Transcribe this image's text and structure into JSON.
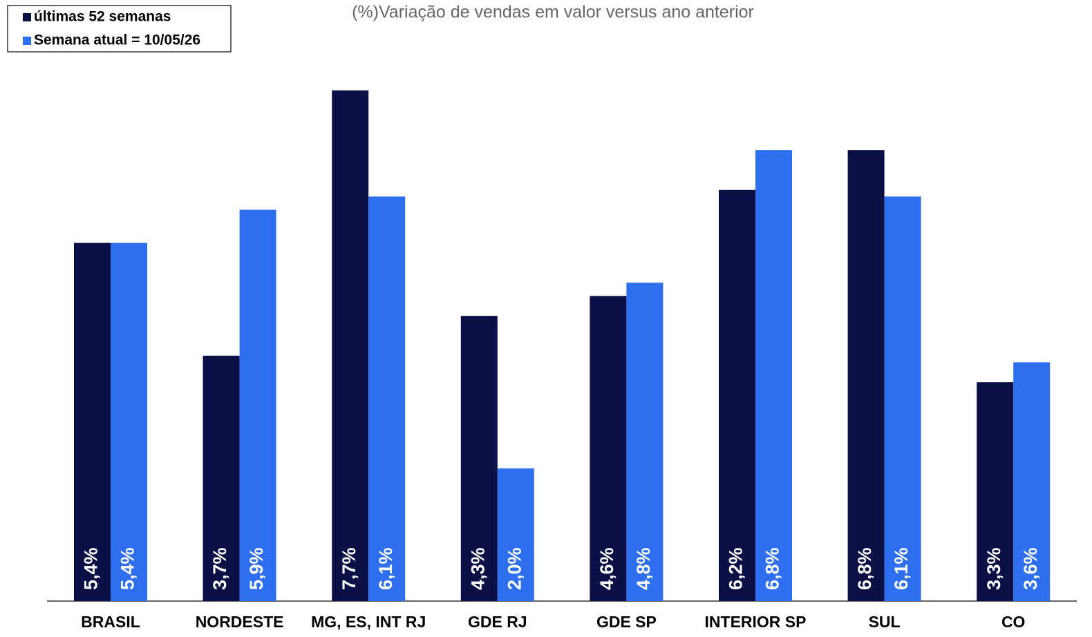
{
  "chart_data": {
    "type": "bar",
    "title": "(%)Variação de vendas em valor versus ano anterior",
    "categories": [
      "BRASIL",
      "NORDESTE",
      "MG, ES, INT RJ",
      "GDE RJ",
      "GDE SP",
      "INTERIOR SP",
      "SUL",
      "CO"
    ],
    "series": [
      {
        "name": "últimas 52 semanas",
        "color": "#0a0f45",
        "values": [
          5.4,
          3.7,
          7.7,
          4.3,
          4.6,
          6.2,
          6.8,
          3.3
        ],
        "value_labels": [
          "5,4%",
          "3,7%",
          "7,7%",
          "4,3%",
          "4,6%",
          "6,2%",
          "6,8%",
          "3,3%"
        ]
      },
      {
        "name": "Semana atual = 10/05/26",
        "color": "#2e6ff0",
        "values": [
          5.4,
          5.9,
          6.1,
          2.0,
          4.8,
          6.8,
          6.1,
          3.6
        ],
        "value_labels": [
          "5,4%",
          "5,9%",
          "6,1%",
          "2,0%",
          "4,8%",
          "6,8%",
          "6,1%",
          "3,6%"
        ]
      }
    ]
  }
}
